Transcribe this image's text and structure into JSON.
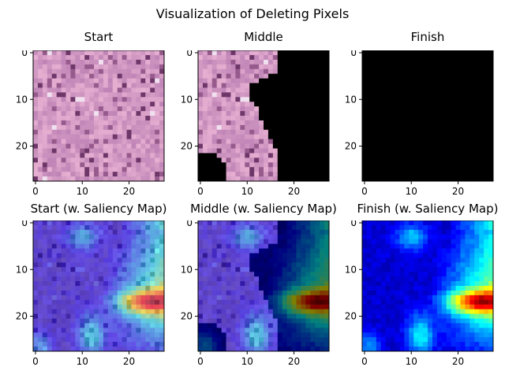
{
  "figure": {
    "suptitle": "Visualization of Deleting Pixels"
  },
  "chart_data": [
    {
      "type": "heatmap",
      "title": "Start",
      "content": "histology-image",
      "deleted_fraction": 0.0,
      "xticks": [
        0,
        10,
        20
      ],
      "yticks": [
        0,
        10,
        20
      ],
      "xlim": [
        0,
        28
      ],
      "ylim": [
        28,
        0
      ]
    },
    {
      "type": "heatmap",
      "title": "Middle",
      "content": "histology-image-partially-deleted",
      "deleted_fraction": 0.5,
      "xticks": [
        0,
        10,
        20
      ],
      "yticks": [
        0,
        10,
        20
      ],
      "xlim": [
        0,
        28
      ],
      "ylim": [
        28,
        0
      ]
    },
    {
      "type": "heatmap",
      "title": "Finish",
      "content": "fully-deleted",
      "deleted_fraction": 1.0,
      "xticks": [
        0,
        10,
        20
      ],
      "yticks": [
        0,
        10,
        20
      ],
      "xlim": [
        0,
        28
      ],
      "ylim": [
        28,
        0
      ]
    },
    {
      "type": "heatmap",
      "title": "Start (w. Saliency Map)",
      "content": "saliency-overlay",
      "deleted_fraction": 0.0,
      "xticks": [
        0,
        10,
        20
      ],
      "yticks": [
        0,
        10,
        20
      ],
      "xlim": [
        0,
        28
      ],
      "ylim": [
        28,
        0
      ]
    },
    {
      "type": "heatmap",
      "title": "Middle (w. Saliency Map)",
      "content": "saliency-overlay-partially-deleted",
      "deleted_fraction": 0.5,
      "xticks": [
        0,
        10,
        20
      ],
      "yticks": [
        0,
        10,
        20
      ],
      "xlim": [
        0,
        28
      ],
      "ylim": [
        28,
        0
      ]
    },
    {
      "type": "heatmap",
      "title": "Finish (w. Saliency Map)",
      "content": "saliency-map-jet",
      "deleted_fraction": 1.0,
      "xticks": [
        0,
        10,
        20
      ],
      "yticks": [
        0,
        10,
        20
      ],
      "xlim": [
        0,
        28
      ],
      "ylim": [
        28,
        0
      ]
    }
  ],
  "colors": {
    "tissue_base": "#d39ac4",
    "deleted": "#000000",
    "overlay_tint": "#7b6bd6"
  },
  "colormap": "jet"
}
